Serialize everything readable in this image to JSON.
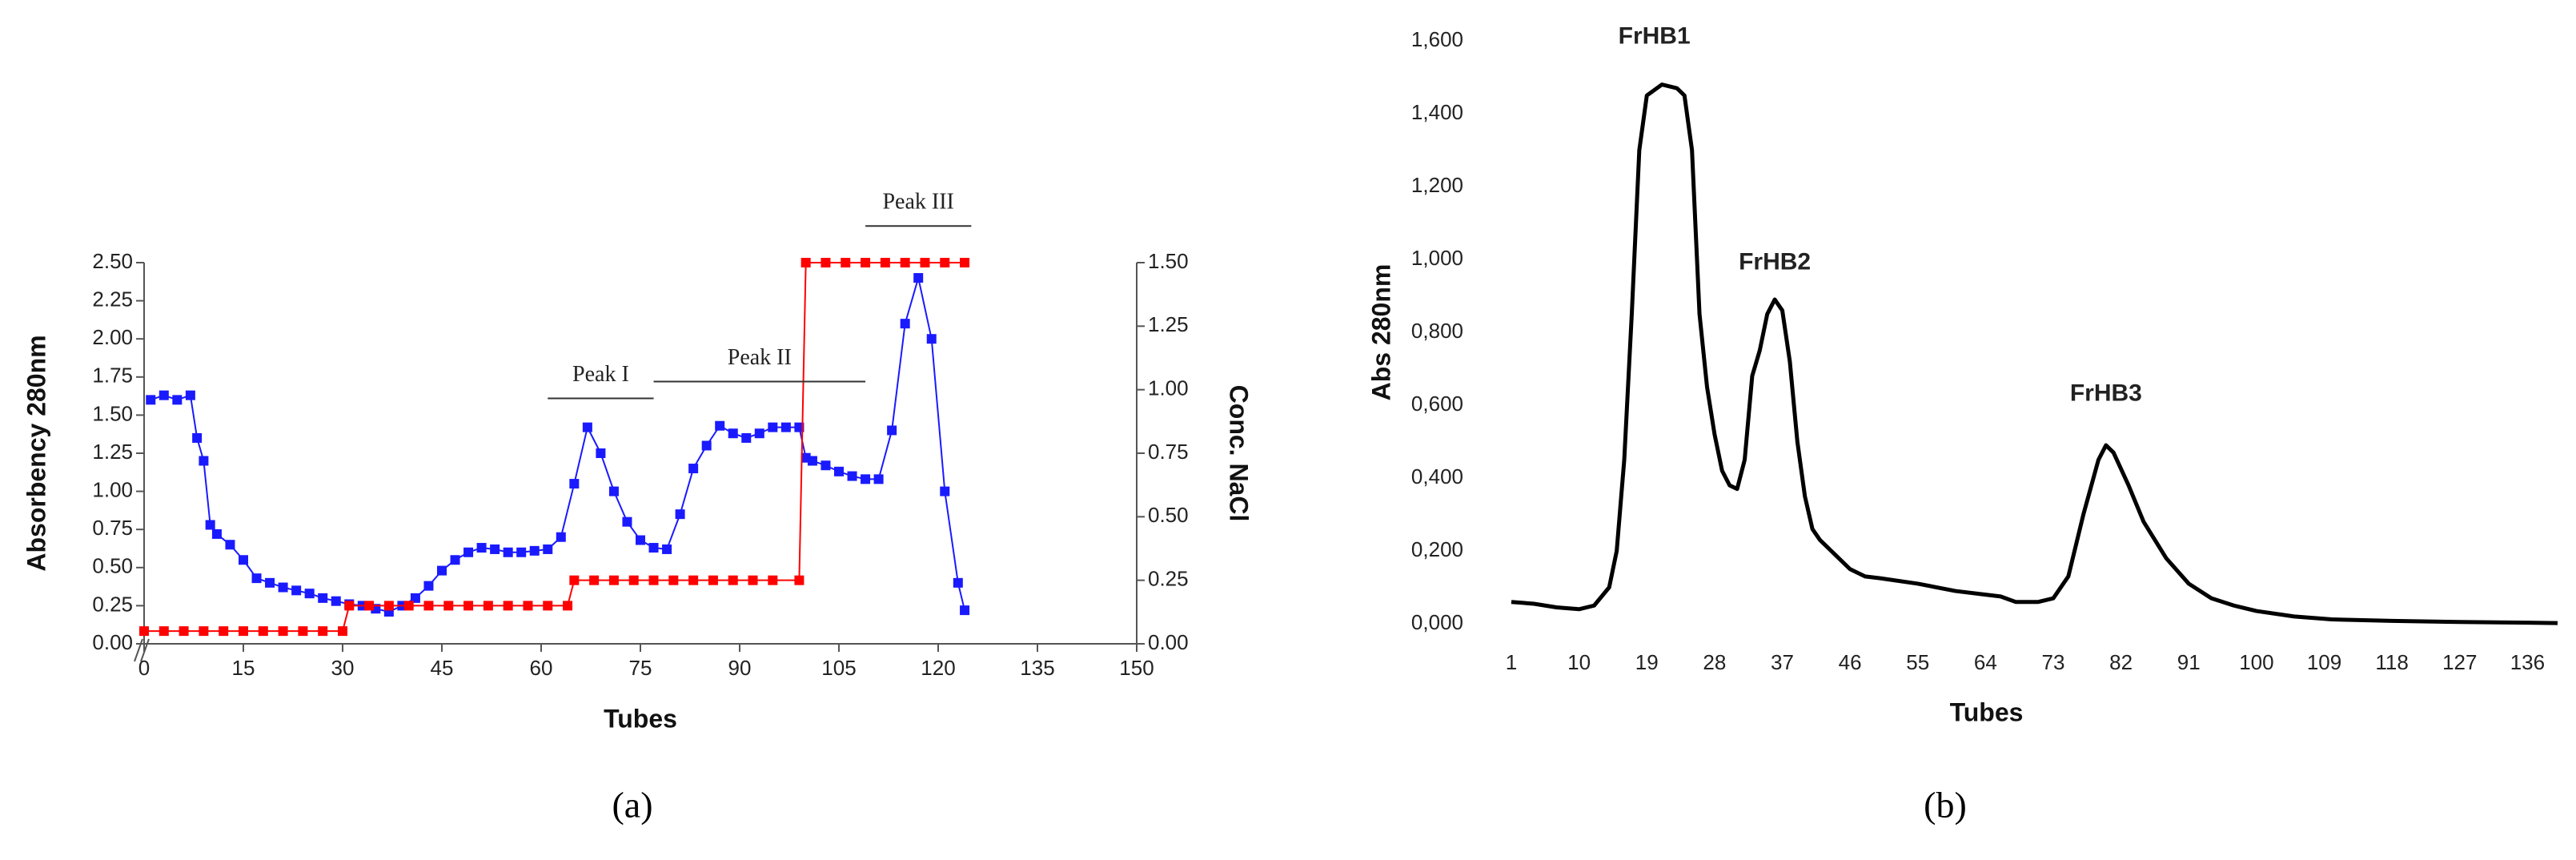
{
  "chart_data": [
    {
      "type": "line",
      "panel_label": "(a)",
      "x_label": "Tubes",
      "y_label": "Absorbency 280nm",
      "y2_label": "Conc. NaCl",
      "xlim": [
        0,
        150
      ],
      "xticks": [
        0,
        15,
        30,
        45,
        60,
        75,
        90,
        105,
        120,
        135,
        150
      ],
      "ylim": [
        0,
        2.5
      ],
      "yticks": [
        {
          "value": 0,
          "label": "0.00"
        },
        {
          "value": 0.25,
          "label": "0.25"
        },
        {
          "value": 0.5,
          "label": "0.50"
        },
        {
          "value": 0.75,
          "label": "0.75"
        },
        {
          "value": 1,
          "label": "1.00"
        },
        {
          "value": 1.25,
          "label": "1.25"
        },
        {
          "value": 1.5,
          "label": "1.50"
        },
        {
          "value": 1.75,
          "label": "1.75"
        },
        {
          "value": 2,
          "label": "2.00"
        },
        {
          "value": 2.25,
          "label": "2.25"
        },
        {
          "value": 2.5,
          "label": "2.50"
        }
      ],
      "y2lim": [
        0,
        1.5
      ],
      "y2ticks": [
        {
          "value": 0,
          "label": "0.00"
        },
        {
          "value": 0.25,
          "label": "0.25"
        },
        {
          "value": 0.5,
          "label": "0.50"
        },
        {
          "value": 0.75,
          "label": "0.75"
        },
        {
          "value": 1,
          "label": "1.00"
        },
        {
          "value": 1.25,
          "label": "1.25"
        },
        {
          "value": 1.5,
          "label": "1.50"
        }
      ],
      "series": [
        {
          "color": "#1a1aff",
          "marker": "square",
          "x": [
            1,
            3,
            5,
            7,
            8,
            9,
            10,
            11,
            13,
            15,
            17,
            19,
            21,
            23,
            25,
            27,
            29,
            31,
            33,
            35,
            37,
            39,
            41,
            43,
            45,
            47,
            49,
            51,
            53,
            55,
            57,
            59,
            61,
            63,
            65,
            67,
            69,
            71,
            73,
            75,
            77,
            79,
            81,
            83,
            85,
            87,
            89,
            91,
            93,
            95,
            97,
            99,
            100,
            101,
            103,
            105,
            107,
            109,
            111,
            113,
            115,
            117,
            119,
            121,
            123,
            124
          ],
          "values": [
            1.6,
            1.63,
            1.6,
            1.63,
            1.35,
            1.2,
            0.78,
            0.72,
            0.65,
            0.55,
            0.43,
            0.4,
            0.37,
            0.35,
            0.33,
            0.3,
            0.28,
            0.26,
            0.25,
            0.23,
            0.21,
            0.25,
            0.3,
            0.38,
            0.48,
            0.55,
            0.6,
            0.63,
            0.62,
            0.6,
            0.6,
            0.61,
            0.62,
            0.7,
            1.05,
            1.42,
            1.25,
            1.0,
            0.8,
            0.68,
            0.63,
            0.62,
            0.85,
            1.15,
            1.3,
            1.43,
            1.38,
            1.35,
            1.38,
            1.42,
            1.42,
            1.42,
            1.22,
            1.2,
            1.17,
            1.13,
            1.1,
            1.08,
            1.08,
            1.4,
            2.1,
            2.4,
            2.0,
            1.0,
            0.4,
            0.22
          ]
        },
        {
          "color": "#ff0000",
          "marker": "square",
          "axis": "y2",
          "x": [
            0,
            3,
            6,
            9,
            12,
            15,
            18,
            21,
            24,
            27,
            30,
            31,
            34,
            37,
            40,
            43,
            46,
            49,
            52,
            55,
            58,
            61,
            64,
            65,
            68,
            71,
            74,
            77,
            80,
            83,
            86,
            89,
            92,
            95,
            99,
            100,
            103,
            106,
            109,
            112,
            115,
            118,
            121,
            124
          ],
          "values": [
            0.05,
            0.05,
            0.05,
            0.05,
            0.05,
            0.05,
            0.05,
            0.05,
            0.05,
            0.05,
            0.05,
            0.15,
            0.15,
            0.15,
            0.15,
            0.15,
            0.15,
            0.15,
            0.15,
            0.15,
            0.15,
            0.15,
            0.15,
            0.25,
            0.25,
            0.25,
            0.25,
            0.25,
            0.25,
            0.25,
            0.25,
            0.25,
            0.25,
            0.25,
            0.25,
            1.5,
            1.5,
            1.5,
            1.5,
            1.5,
            1.5,
            1.5,
            1.5,
            1.5
          ]
        }
      ],
      "annotations": [
        {
          "text": "Peak I",
          "x_range": [
            61,
            77
          ],
          "y": 1.61
        },
        {
          "text": "Peak II",
          "x_range": [
            77,
            109
          ],
          "y": 1.72
        },
        {
          "text": "Peak III",
          "x_range": [
            109,
            125
          ],
          "y": 2.74
        }
      ]
    },
    {
      "type": "line",
      "panel_label": "(b)",
      "x_label": "Tubes",
      "y_label": "Abs 280nm",
      "xlim": [
        1,
        140
      ],
      "xticks": [
        1,
        10,
        19,
        28,
        37,
        46,
        55,
        64,
        73,
        82,
        91,
        100,
        109,
        118,
        127,
        136
      ],
      "ylim": [
        0,
        1.6
      ],
      "yticks": [
        {
          "value": 0,
          "label": "0,000"
        },
        {
          "value": 0.2,
          "label": "0,200"
        },
        {
          "value": 0.4,
          "label": "0,400"
        },
        {
          "value": 0.6,
          "label": "0,600"
        },
        {
          "value": 0.8,
          "label": "0,800"
        },
        {
          "value": 1,
          "label": "1,000"
        },
        {
          "value": 1.2,
          "label": "1,200"
        },
        {
          "value": 1.4,
          "label": "1,400"
        },
        {
          "value": 1.6,
          "label": "1,600"
        }
      ],
      "series": [
        {
          "color": "#000000",
          "x": [
            1,
            4,
            7,
            10,
            12,
            14,
            15,
            16,
            17,
            18,
            19,
            21,
            23,
            24,
            25,
            26,
            27,
            28,
            29,
            30,
            31,
            32,
            33,
            34,
            35,
            36,
            37,
            38,
            39,
            40,
            41,
            42,
            44,
            46,
            48,
            50,
            55,
            60,
            64,
            66,
            68,
            71,
            73,
            75,
            77,
            79,
            80,
            81,
            83,
            85,
            88,
            91,
            94,
            97,
            100,
            105,
            110,
            118,
            127,
            136,
            140
          ],
          "values": [
            0.06,
            0.055,
            0.045,
            0.04,
            0.05,
            0.1,
            0.2,
            0.45,
            0.85,
            1.3,
            1.45,
            1.48,
            1.47,
            1.45,
            1.3,
            0.85,
            0.65,
            0.52,
            0.42,
            0.38,
            0.37,
            0.45,
            0.68,
            0.75,
            0.85,
            0.89,
            0.86,
            0.72,
            0.5,
            0.35,
            0.26,
            0.23,
            0.19,
            0.15,
            0.13,
            0.125,
            0.11,
            0.09,
            0.08,
            0.075,
            0.06,
            0.06,
            0.07,
            0.13,
            0.3,
            0.45,
            0.49,
            0.47,
            0.38,
            0.28,
            0.18,
            0.11,
            0.07,
            0.05,
            0.035,
            0.02,
            0.012,
            0.008,
            0.005,
            0.003,
            0.002
          ]
        }
      ],
      "annotations": [
        {
          "text": "FrHB1",
          "x": 20,
          "y": 1.61
        },
        {
          "text": "FrHB2",
          "x": 36,
          "y": 0.99
        },
        {
          "text": "FrHB3",
          "x": 80,
          "y": 0.63
        }
      ]
    }
  ]
}
